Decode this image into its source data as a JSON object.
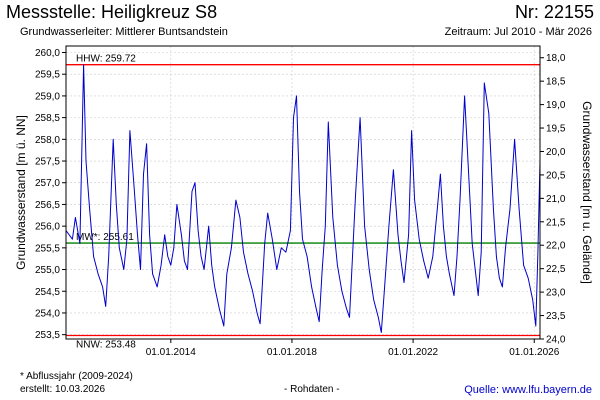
{
  "header": {
    "title": "Messstelle: Heiligkreuz S8",
    "number": "Nr: 22155",
    "aquifer": "Grundwasserleiter:  Mittlerer Buntsandstein",
    "period": "Zeitraum: Jul 2010 - Mär 2026"
  },
  "footer": {
    "footnote": "* Abflussjahr (2009-2024)",
    "created": "erstellt:  10.03.2026",
    "rawdata": "- Rohdaten -",
    "source": "Quelle: www.lfu.bayern.de"
  },
  "colors": {
    "series": "#0000cc",
    "hhw": "#ff0000",
    "nnw": "#ff0000",
    "mw": "#008000",
    "grid": "#cccccc"
  },
  "chart_data": {
    "type": "line",
    "ylabel": "Grundwasserstand [m ü. NN]",
    "ylabel_right": "Grundwasserstand [m u. Gelände]",
    "ylim": [
      253.4,
      260.15
    ],
    "yticks": [
      "253,5",
      "254,0",
      "254,5",
      "255,0",
      "255,5",
      "256,0",
      "256,5",
      "257,0",
      "257,5",
      "258,0",
      "258,5",
      "259,0",
      "259,5",
      "260,0"
    ],
    "right_ylim": [
      24.0,
      17.75
    ],
    "right_yticks": [
      "18,0",
      "18,5",
      "19,0",
      "19,5",
      "20,0",
      "20,5",
      "21,0",
      "21,5",
      "22,0",
      "22,5",
      "23,0",
      "23,5",
      "24,0"
    ],
    "xlim": [
      2010.54,
      2026.19
    ],
    "xticks": [
      "01.01.2014",
      "01.01.2018",
      "01.01.2022",
      "01.01.2026"
    ],
    "xtick_values": [
      2014.0,
      2018.0,
      2022.0,
      2026.0
    ],
    "grid": true,
    "reference_lines": [
      {
        "label": "HHW: 259.72",
        "value": 259.72,
        "kind": "hhw"
      },
      {
        "label": "MW*: 255.61",
        "value": 255.61,
        "kind": "mw"
      },
      {
        "label": "NNW: 253.48",
        "value": 253.48,
        "kind": "nnw"
      }
    ],
    "series": [
      {
        "x": [
          2010.54,
          2010.75,
          2010.85,
          2011.0,
          2011.12,
          2011.2,
          2011.32,
          2011.45,
          2011.6,
          2011.75,
          2011.85,
          2011.95,
          2012.1,
          2012.2,
          2012.3,
          2012.45,
          2012.55,
          2012.65,
          2012.8,
          2012.9,
          2013.0,
          2013.1,
          2013.2,
          2013.3,
          2013.4,
          2013.55,
          2013.68,
          2013.8,
          2013.9,
          2014.0,
          2014.1,
          2014.2,
          2014.35,
          2014.45,
          2014.55,
          2014.7,
          2014.8,
          2014.9,
          2015.0,
          2015.1,
          2015.25,
          2015.35,
          2015.45,
          2015.6,
          2015.75,
          2015.85,
          2016.0,
          2016.15,
          2016.28,
          2016.4,
          2016.55,
          2016.7,
          2016.85,
          2016.95,
          2017.1,
          2017.2,
          2017.35,
          2017.5,
          2017.65,
          2017.8,
          2017.95,
          2018.05,
          2018.15,
          2018.25,
          2018.35,
          2018.5,
          2018.65,
          2018.8,
          2018.9,
          2019.0,
          2019.1,
          2019.2,
          2019.35,
          2019.5,
          2019.65,
          2019.8,
          2019.9,
          2020.0,
          2020.1,
          2020.25,
          2020.4,
          2020.55,
          2020.7,
          2020.85,
          2020.95,
          2021.05,
          2021.2,
          2021.35,
          2021.5,
          2021.6,
          2021.7,
          2021.85,
          2021.95,
          2022.05,
          2022.2,
          2022.35,
          2022.5,
          2022.65,
          2022.8,
          2022.9,
          2023.0,
          2023.1,
          2023.2,
          2023.35,
          2023.45,
          2023.55,
          2023.7,
          2023.85,
          2023.95,
          2024.05,
          2024.15,
          2024.25,
          2024.35,
          2024.5,
          2024.65,
          2024.75,
          2024.85,
          2024.95,
          2025.05,
          2025.2,
          2025.35,
          2025.5,
          2025.65,
          2025.8,
          2025.95,
          2026.05,
          2026.12,
          2026.19
        ],
        "y": [
          255.9,
          255.7,
          256.2,
          255.6,
          259.72,
          257.5,
          256.4,
          255.3,
          254.9,
          254.6,
          254.15,
          255.3,
          258.0,
          256.5,
          255.5,
          255.0,
          255.7,
          258.2,
          256.8,
          255.8,
          255.0,
          257.2,
          257.9,
          255.8,
          254.9,
          254.6,
          255.1,
          255.8,
          255.3,
          255.1,
          255.5,
          256.5,
          255.8,
          255.2,
          255.0,
          256.8,
          257.0,
          255.9,
          255.3,
          255.0,
          256.0,
          255.1,
          254.6,
          254.1,
          253.7,
          254.9,
          255.5,
          256.6,
          256.2,
          255.4,
          254.9,
          254.5,
          254.0,
          253.75,
          255.6,
          256.3,
          255.7,
          255.0,
          255.5,
          255.4,
          255.9,
          258.5,
          259.0,
          256.8,
          255.7,
          255.3,
          254.6,
          254.1,
          253.8,
          255.0,
          256.0,
          258.4,
          256.2,
          255.1,
          254.5,
          254.1,
          253.9,
          255.3,
          256.7,
          258.5,
          256.0,
          255.0,
          254.3,
          253.9,
          253.55,
          254.5,
          256.0,
          257.3,
          255.8,
          255.2,
          254.7,
          255.8,
          258.2,
          256.6,
          255.7,
          255.2,
          254.8,
          255.3,
          256.4,
          257.2,
          256.0,
          255.3,
          254.9,
          254.4,
          255.3,
          256.6,
          259.0,
          257.0,
          255.6,
          255.0,
          254.4,
          255.4,
          259.3,
          258.6,
          256.4,
          255.3,
          254.8,
          254.6,
          255.5,
          256.4,
          258.0,
          256.4,
          255.1,
          254.8,
          254.3,
          253.7,
          255.4,
          257.5
        ]
      }
    ]
  }
}
